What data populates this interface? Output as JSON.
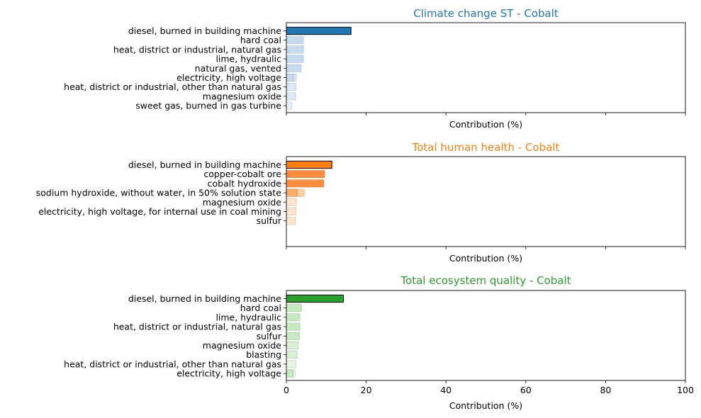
{
  "chart_data": [
    {
      "type": "bar",
      "orientation": "horizontal",
      "title": "Climate change ST - Cobalt",
      "title_color": "#1f77b4",
      "xlabel": "Contribution (%)",
      "ylabel": "",
      "xlim": [
        0,
        100
      ],
      "x_tick_labels_shown": false,
      "grid": false,
      "series": [
        {
          "categories": [
            "diesel, burned in building machine",
            "hard coal",
            "heat, district or industrial, natural gas",
            "lime, hydraulic",
            "natural gas, vented",
            "electricity, high voltage",
            "heat, district or industrial, other than natural gas",
            "magnesium oxide",
            "sweet gas, burned in gas turbine"
          ],
          "values": [
            16.2,
            4.3,
            4.3,
            4.3,
            3.7,
            2.5,
            2.4,
            2.3,
            1.4
          ],
          "colors": [
            "#1f77b4",
            "#c6dbef",
            "#c6dbef",
            "#c6dbef",
            "#c6dbef",
            "#dbe9f6",
            "#dbe9f6",
            "#dbe9f6",
            "#e8f1fa"
          ]
        },
        {
          "categories": [
            "electricity, high voltage"
          ],
          "values": [
            1.8
          ],
          "colors": [
            "#c6dbef"
          ]
        }
      ]
    },
    {
      "type": "bar",
      "orientation": "horizontal",
      "title": "Total human health - Cobalt",
      "title_color": "#ff7f0e",
      "xlabel": "Contribution (%)",
      "ylabel": "",
      "xlim": [
        0,
        100
      ],
      "x_tick_labels_shown": false,
      "grid": false,
      "series": [
        {
          "categories": [
            "diesel, burned in building machine",
            "copper-cobalt ore",
            "cobalt hydroxide",
            "sodium hydroxide, without water, in 50% solution state",
            "magnesium oxide",
            "electricity, high voltage, for internal use in coal mining",
            "sulfur"
          ],
          "values": [
            11.4,
            9.6,
            9.4,
            4.5,
            2.5,
            2.4,
            2.3
          ],
          "colors": [
            "#ff7f0e",
            "#fd8d3c",
            "#fd8d3c",
            "#fdd0a2",
            "#fee6ce",
            "#fee6ce",
            "#fee6ce"
          ]
        },
        {
          "categories": [
            "sodium hydroxide, without water, in 50% solution state"
          ],
          "values": [
            2.8
          ],
          "colors": [
            "#fdae6b"
          ]
        }
      ]
    },
    {
      "type": "bar",
      "orientation": "horizontal",
      "title": "Total ecosystem quality - Cobalt",
      "title_color": "#2ca02c",
      "xlabel": "Contribution (%)",
      "ylabel": "",
      "xlim": [
        0,
        100
      ],
      "x_ticks": [
        0,
        20,
        40,
        60,
        80,
        100
      ],
      "x_tick_labels_shown": true,
      "grid": false,
      "series": [
        {
          "categories": [
            "diesel, burned in building machine",
            "hard coal",
            "lime, hydraulic",
            "heat, district or industrial, natural gas",
            "sulfur",
            "magnesium oxide",
            "blasting",
            "heat, district or industrial, other than natural gas",
            "electricity, high voltage"
          ],
          "values": [
            14.3,
            3.8,
            3.4,
            3.4,
            3.3,
            3.0,
            2.7,
            2.4,
            2.2
          ],
          "colors": [
            "#2ca02c",
            "#c7e9c0",
            "#c7e9c0",
            "#c7e9c0",
            "#c7e9c0",
            "#d9f0d3",
            "#d9f0d3",
            "#e5f5e0",
            "#e5f5e0"
          ]
        },
        {
          "categories": [
            "electricity, high voltage"
          ],
          "values": [
            1.7
          ],
          "colors": [
            "#c7e9c0"
          ]
        }
      ]
    }
  ]
}
